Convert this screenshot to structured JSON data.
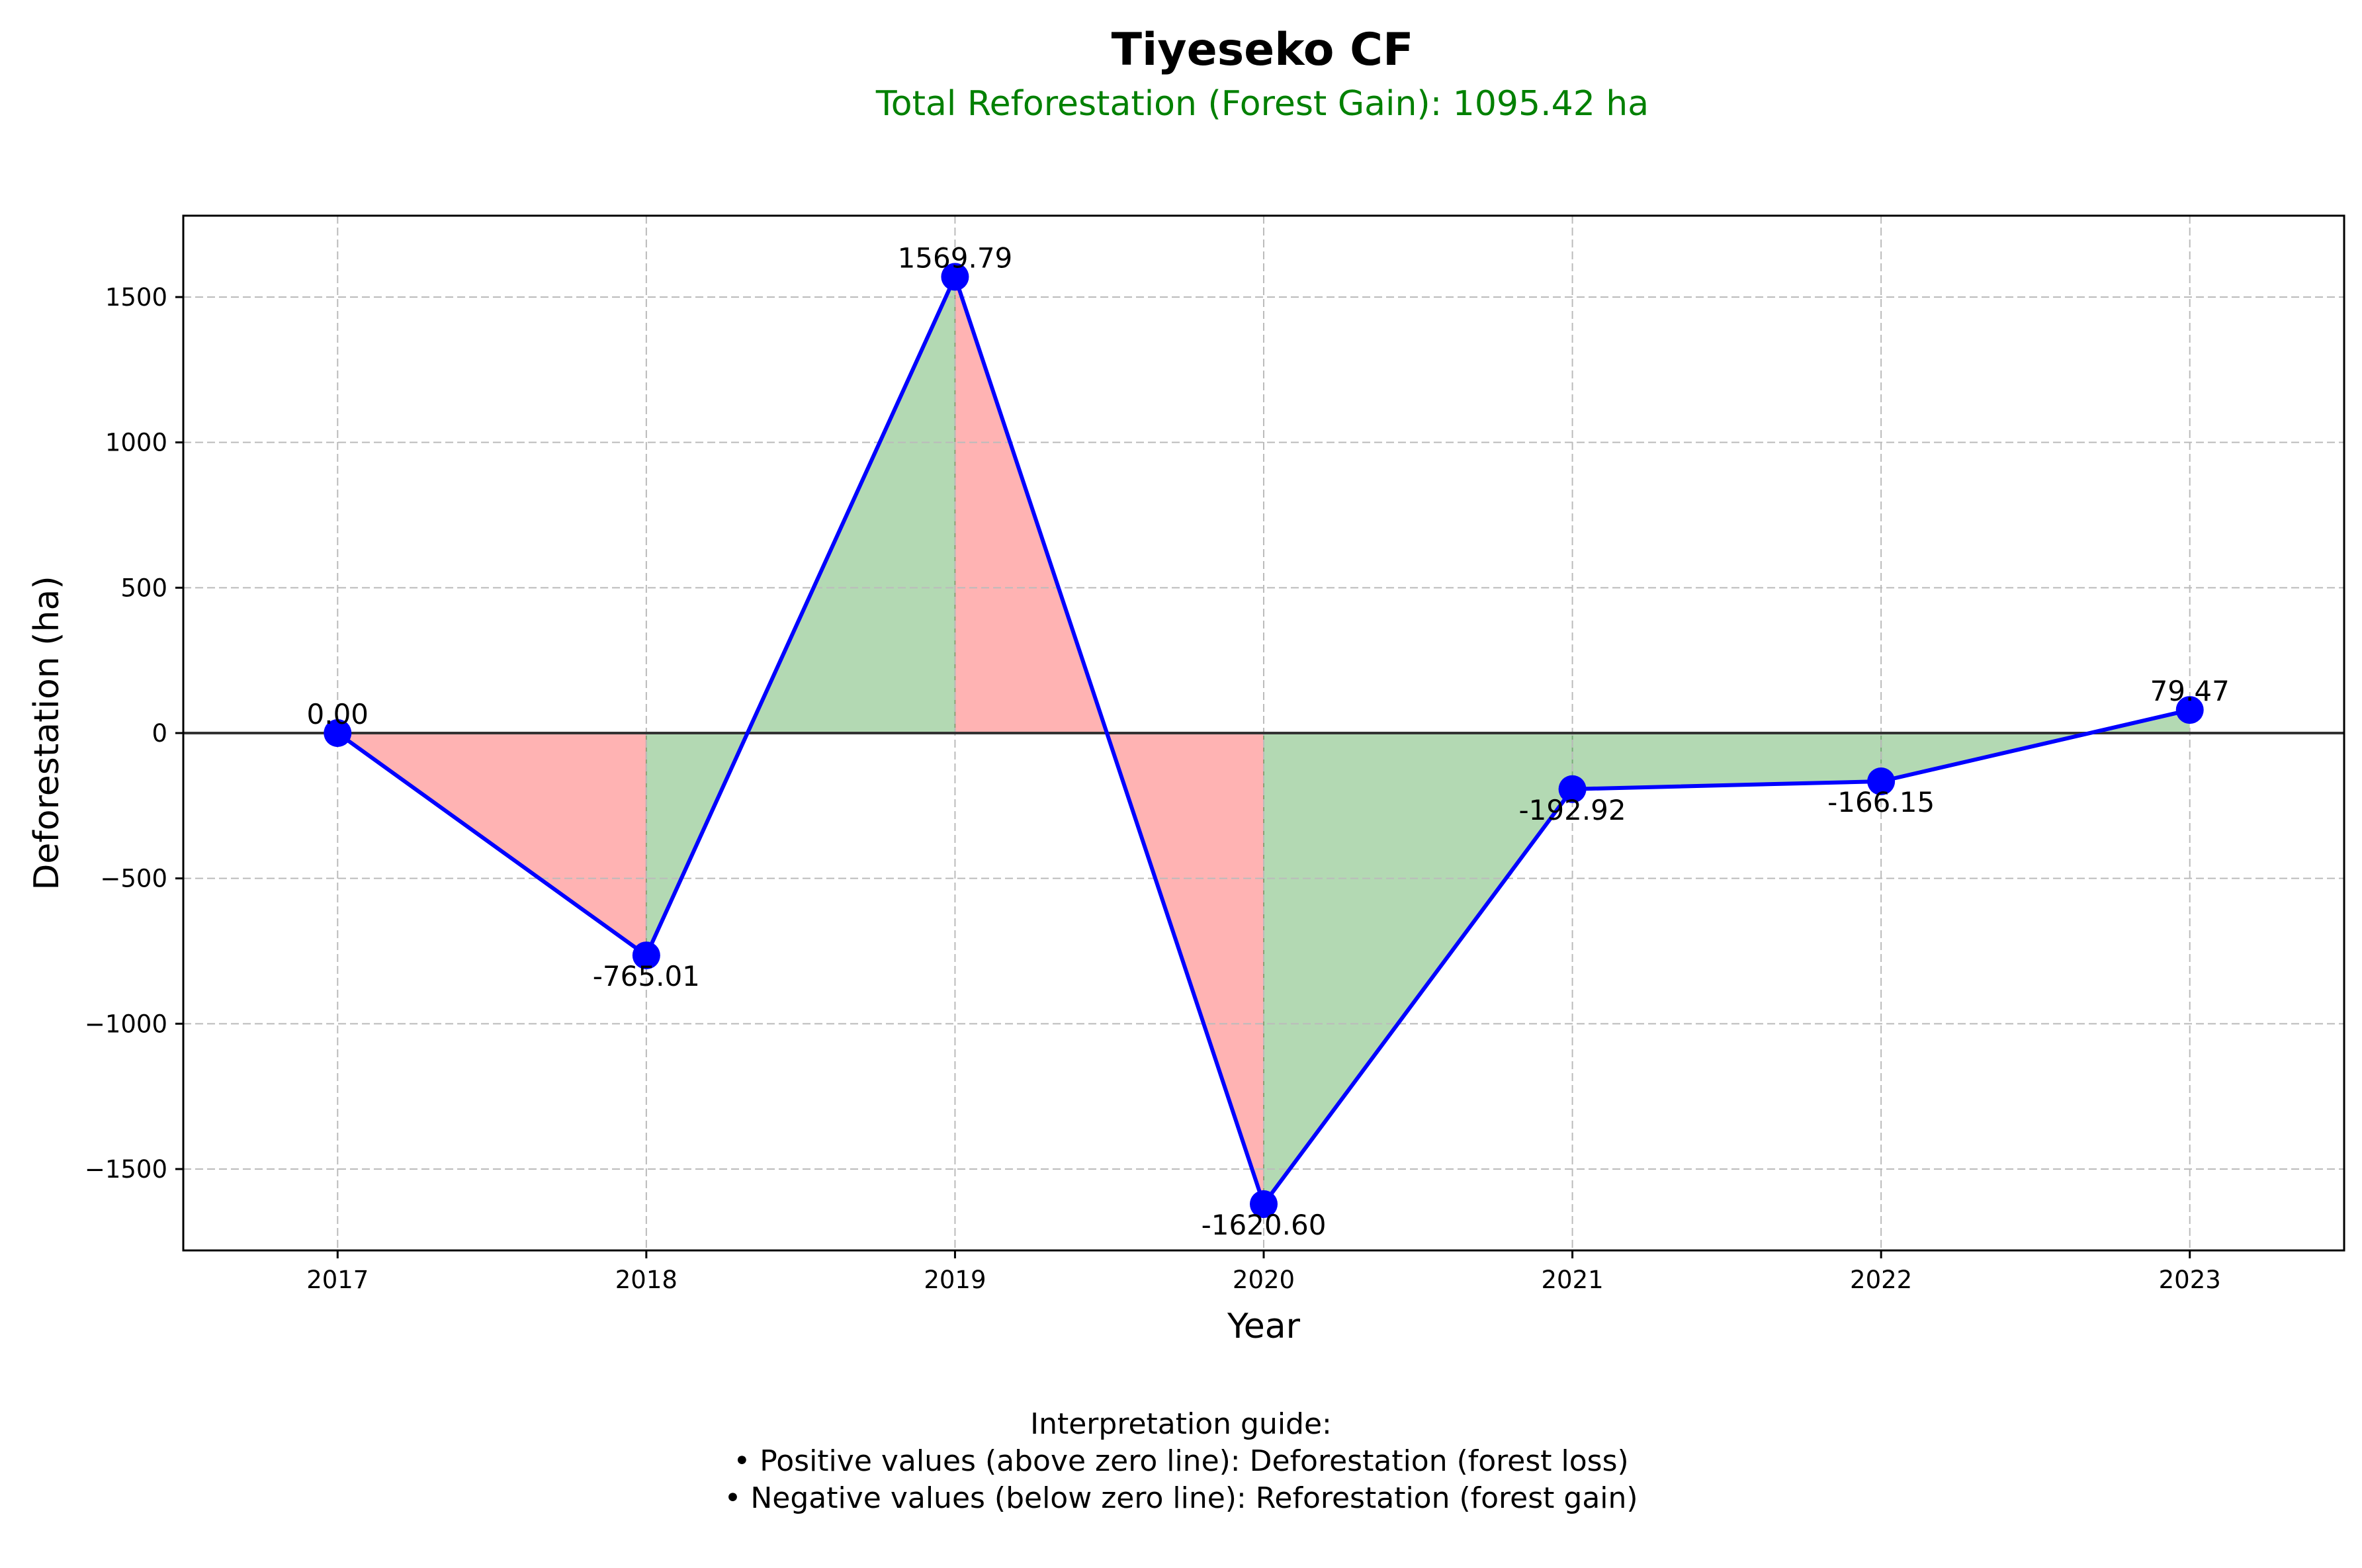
{
  "chart_data": {
    "type": "line",
    "title": "Tiyeseko CF",
    "subtitle": "Total Reforestation (Forest Gain): 1095.42 ha",
    "xlabel": "Year",
    "ylabel": "Deforestation (ha)",
    "categories": [
      "2017",
      "2018",
      "2019",
      "2020",
      "2021",
      "2022",
      "2023"
    ],
    "values": [
      0.0,
      -765.01,
      1569.79,
      -1620.6,
      -192.92,
      -166.15,
      79.47
    ],
    "data_labels": [
      "0.00",
      "-765.01",
      "1569.79",
      "-1620.60",
      "-192.92",
      "-166.15",
      "79.47"
    ],
    "ylim": [
      -1780,
      1780
    ],
    "xlim": [
      -0.5,
      6.5
    ],
    "yticks": [
      -1500,
      -1000,
      -500,
      0,
      500,
      1000,
      1500
    ],
    "ytick_labels": [
      "−1500",
      "−1000",
      "−500",
      "0",
      "500",
      "1000",
      "1500"
    ],
    "grid": true,
    "colors": {
      "line": "#0000ff",
      "marker": "#0000ff",
      "loss_fill": "#ff9999",
      "gain_fill": "#99cc99",
      "subtitle": "#008000",
      "zero_line": "#333333",
      "grid": "#bbbbbb"
    }
  },
  "guide": {
    "heading": "Interpretation guide:",
    "line1": "• Positive values (above zero line): Deforestation (forest loss)",
    "line2": "• Negative values (below zero line): Reforestation (forest gain)"
  }
}
